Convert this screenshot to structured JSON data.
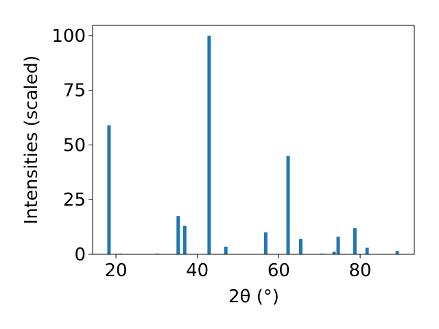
{
  "chart_data": {
    "type": "bar",
    "x_label": "2θ (°)",
    "y_label": "Intensities (scaled)",
    "x": [
      18.3,
      21.2,
      30.1,
      35.3,
      36.9,
      42.9,
      47.0,
      56.8,
      62.3,
      65.4,
      70.6,
      73.6,
      74.6,
      78.7,
      81.7,
      89.1
    ],
    "values": [
      59,
      0.3,
      0.3,
      17.5,
      13,
      100,
      3.5,
      10,
      45,
      7,
      0.3,
      1.2,
      8,
      12,
      3,
      1.5
    ],
    "color": "#1f77b4",
    "xlim": [
      14.27,
      93.3
    ],
    "ylim": [
      0,
      104.7
    ],
    "xticks": [
      20,
      40,
      60,
      80
    ],
    "yticks": [
      0,
      25,
      50,
      75,
      100
    ],
    "grid": false
  }
}
